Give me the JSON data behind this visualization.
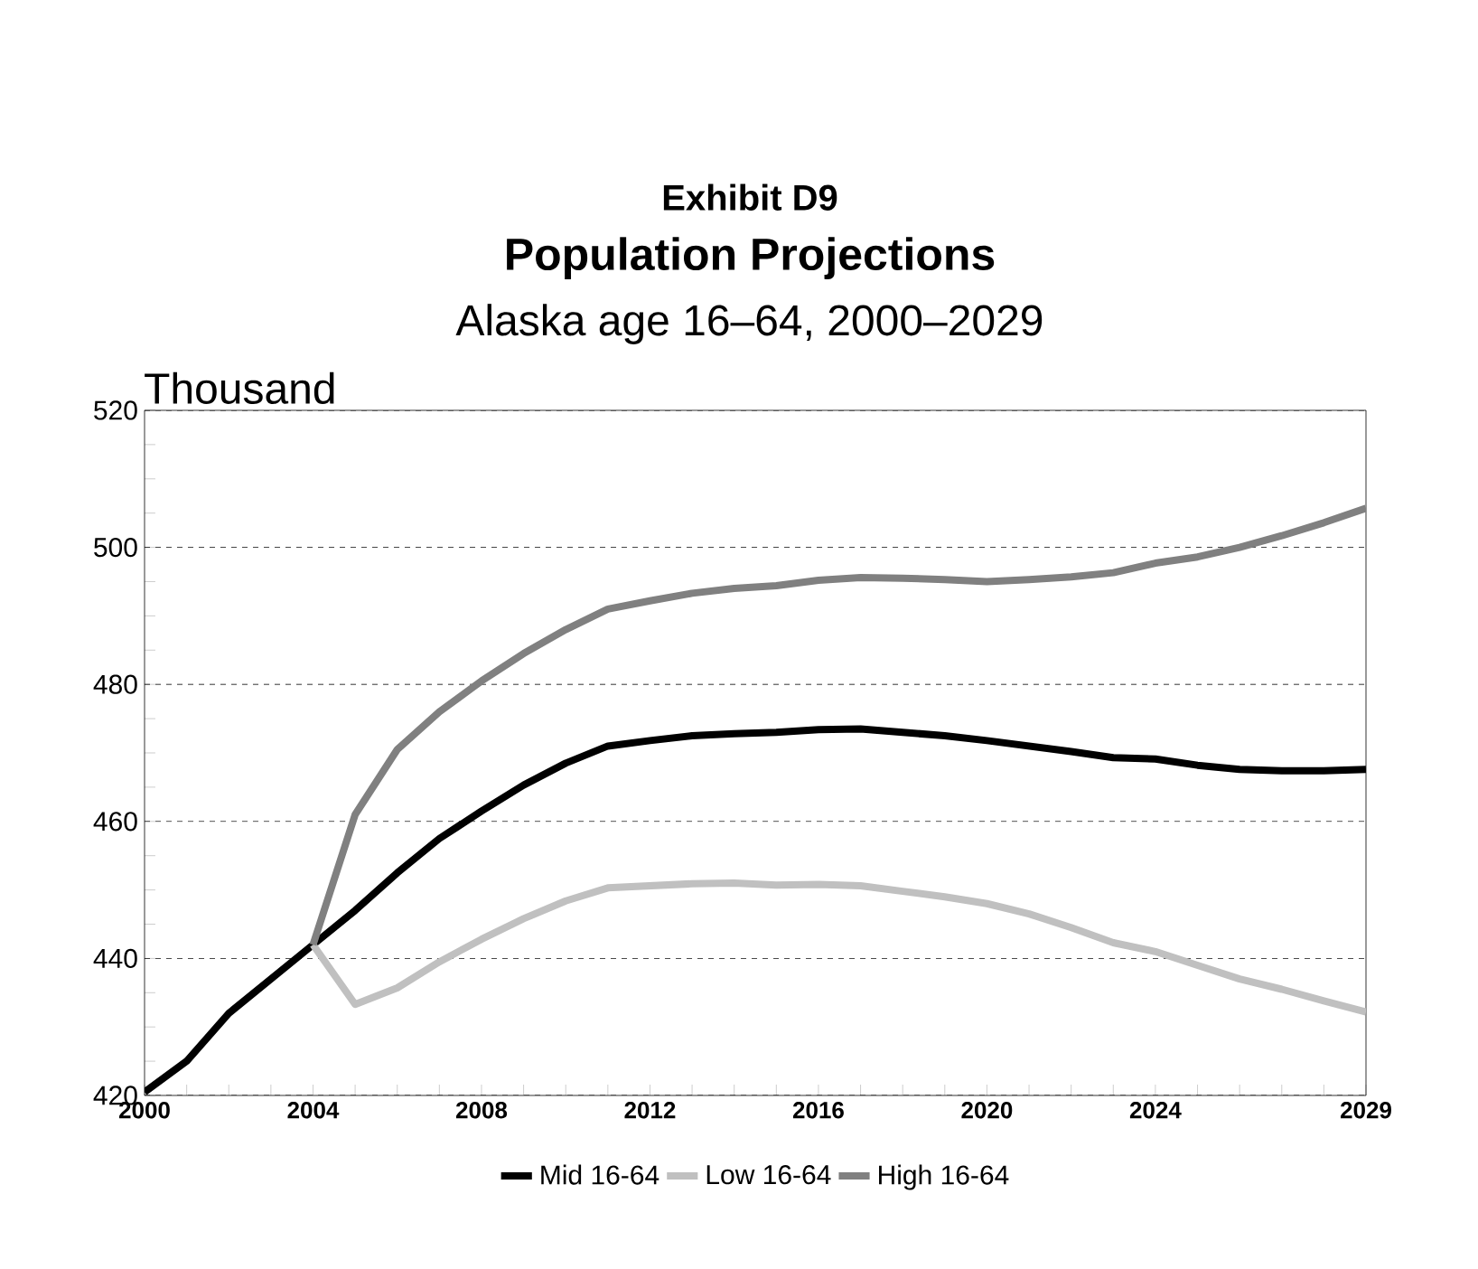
{
  "chart_data": {
    "type": "line",
    "title": "Population Projections",
    "annotations": [
      "Exhibit D9"
    ],
    "subtitle": "Alaska age 16–64, 2000–2029",
    "ylabel": "Thousand",
    "xlim": [
      2000,
      2029
    ],
    "ylim": [
      420,
      520
    ],
    "xticks": [
      2000,
      {
        "value": 2001,
        "label": null
      },
      {
        "value": 2002,
        "label": null
      },
      {
        "value": 2003,
        "label": null
      },
      2004,
      {
        "value": 2005,
        "label": null
      },
      {
        "value": 2006,
        "label": null
      },
      {
        "value": 2007,
        "label": null
      },
      2008,
      {
        "value": 2009,
        "label": null
      },
      {
        "value": 2010,
        "label": null
      },
      {
        "value": 2011,
        "label": null
      },
      2012,
      {
        "value": 2013,
        "label": null
      },
      {
        "value": 2014,
        "label": null
      },
      {
        "value": 2015,
        "label": null
      },
      2016,
      {
        "value": 2017,
        "label": null
      },
      {
        "value": 2018,
        "label": null
      },
      {
        "value": 2019,
        "label": null
      },
      2020,
      {
        "value": 2021,
        "label": null
      },
      {
        "value": 2022,
        "label": null
      },
      {
        "value": 2023,
        "label": null
      },
      2024,
      {
        "value": 2025,
        "label": null
      },
      {
        "value": 2026,
        "label": null
      },
      {
        "value": 2027,
        "label": null
      },
      {
        "value": 2028,
        "label": null
      },
      2029
    ],
    "yticks": [
      420,
      {
        "value": 425,
        "label": null
      },
      {
        "value": 430,
        "label": null
      },
      {
        "value": 435,
        "label": null
      },
      440,
      {
        "value": 445,
        "label": null
      },
      {
        "value": 450,
        "label": null
      },
      {
        "value": 455,
        "label": null
      },
      460,
      {
        "value": 465,
        "label": null
      },
      {
        "value": 470,
        "label": null
      },
      {
        "value": 475,
        "label": null
      },
      480,
      {
        "value": 485,
        "label": null
      },
      {
        "value": 490,
        "label": null
      },
      {
        "value": 495,
        "label": null
      },
      500,
      {
        "value": 505,
        "label": null
      },
      {
        "value": 510,
        "label": null
      },
      {
        "value": 515,
        "label": null
      },
      520
    ],
    "grid": "y",
    "legend": "bottom",
    "marker": "none",
    "line_style": "solid",
    "series": [
      {
        "name": "Mid 16-64",
        "color": "#000000",
        "x": [
          2000,
          2001,
          2002,
          2003,
          2004,
          2005,
          2006,
          2007,
          2008,
          2009,
          2010,
          2011,
          2012,
          2013,
          2014,
          2015,
          2016,
          2017,
          2018,
          2019,
          2020,
          2021,
          2022,
          2023,
          2024,
          2025,
          2026,
          2027,
          2028,
          2029
        ],
        "values": [
          420.5,
          425,
          432,
          437,
          442,
          447,
          452.5,
          457.5,
          461.5,
          465.3,
          468.5,
          471,
          471.8,
          472.5,
          472.8,
          473,
          473.4,
          473.5,
          473,
          472.5,
          471.8,
          471,
          470.2,
          469.3,
          469.1,
          468.2,
          467.6,
          467.4,
          467.4,
          467.6
        ]
      },
      {
        "name": "Low  16-64",
        "color": "#c0c0c0",
        "x": [
          2004,
          2005,
          2006,
          2007,
          2008,
          2009,
          2010,
          2011,
          2012,
          2013,
          2014,
          2015,
          2016,
          2017,
          2018,
          2019,
          2020,
          2021,
          2022,
          2023,
          2024,
          2025,
          2026,
          2027,
          2028,
          2029
        ],
        "values": [
          442,
          433.3,
          435.7,
          439.5,
          442.8,
          445.8,
          448.4,
          450.3,
          450.6,
          450.9,
          451,
          450.7,
          450.8,
          450.6,
          449.8,
          449,
          448,
          446.5,
          444.5,
          442.3,
          441,
          439,
          437,
          435.5,
          433.8,
          432.2
        ]
      },
      {
        "name": "High 16-64",
        "color": "#808080",
        "x": [
          2004,
          2005,
          2006,
          2007,
          2008,
          2009,
          2010,
          2011,
          2012,
          2013,
          2014,
          2015,
          2016,
          2017,
          2018,
          2019,
          2020,
          2021,
          2022,
          2023,
          2024,
          2025,
          2026,
          2027,
          2028,
          2029
        ],
        "values": [
          442,
          461,
          470.5,
          476,
          480.5,
          484.5,
          488,
          491,
          492.2,
          493.3,
          494,
          494.4,
          495.2,
          495.6,
          495.5,
          495.3,
          495,
          495.3,
          495.7,
          496.3,
          497.7,
          498.6,
          500,
          501.7,
          503.6,
          505.7
        ]
      }
    ]
  }
}
